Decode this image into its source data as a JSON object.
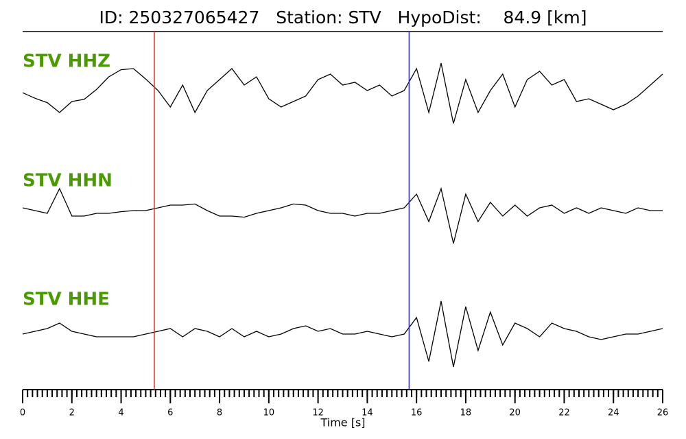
{
  "chart_data": {
    "type": "line",
    "title": "ID: 250327065427   Station: STV   HypoDist:    84.9 [km]",
    "xlabel": "Time [s]",
    "xlim": [
      0,
      26
    ],
    "xticks": [
      0,
      2,
      4,
      6,
      8,
      10,
      12,
      14,
      16,
      18,
      20,
      22,
      24,
      26
    ],
    "minor_tick_interval": 0.2,
    "ylim": [
      -1,
      1
    ],
    "label_color": "#4a9a00",
    "markers": [
      {
        "x": 5.35,
        "color": "#e8302a"
      },
      {
        "x": 15.7,
        "color": "#2a2ae0"
      }
    ],
    "x": [
      0,
      0.5,
      1,
      1.5,
      2,
      2.5,
      3,
      3.5,
      4,
      4.5,
      5,
      5.5,
      6,
      6.5,
      7,
      7.5,
      8,
      8.5,
      9,
      9.5,
      10,
      10.5,
      11,
      11.5,
      12,
      12.5,
      13,
      13.5,
      14,
      14.5,
      15,
      15.5,
      16,
      16.5,
      17,
      17.5,
      18,
      18.5,
      19,
      19.5,
      20,
      20.5,
      21,
      21.5,
      22,
      22.5,
      23,
      23.5,
      24,
      24.5,
      25,
      25.5,
      26
    ],
    "series": [
      {
        "name": "STV HHZ",
        "color": "#000000",
        "values": [
          0.06,
          -0.04,
          -0.12,
          -0.3,
          -0.1,
          -0.06,
          0.12,
          0.35,
          0.48,
          0.5,
          0.31,
          0.1,
          -0.2,
          0.2,
          -0.3,
          0.1,
          0.3,
          0.5,
          0.2,
          0.35,
          -0.05,
          -0.2,
          -0.1,
          0,
          0.3,
          0.4,
          0.2,
          0.25,
          0.1,
          0.2,
          0,
          0.1,
          0.5,
          -0.3,
          0.6,
          -0.5,
          0.3,
          -0.3,
          0.1,
          0.4,
          -0.2,
          0.3,
          0.45,
          0.2,
          0.3,
          -0.1,
          -0.05,
          -0.15,
          -0.25,
          -0.15,
          0,
          0.2,
          0.4
        ]
      },
      {
        "name": "STV HHN",
        "color": "#000000",
        "values": [
          0.05,
          0,
          -0.05,
          0.4,
          -0.1,
          -0.1,
          -0.05,
          -0.05,
          -0.02,
          0,
          0,
          0.05,
          0.1,
          0.1,
          0.12,
          0,
          -0.1,
          -0.1,
          -0.12,
          -0.05,
          0,
          0.05,
          0.12,
          0.1,
          0,
          -0.05,
          -0.05,
          -0.1,
          -0.05,
          -0.05,
          0,
          0.05,
          0.3,
          -0.2,
          0.4,
          -0.6,
          0.3,
          -0.2,
          0.15,
          -0.1,
          0.1,
          -0.1,
          0.05,
          0.1,
          -0.05,
          0.05,
          -0.05,
          0.05,
          0,
          -0.05,
          0.05,
          0,
          0
        ]
      },
      {
        "name": "STV HHE",
        "color": "#000000",
        "values": [
          0,
          0.05,
          0.1,
          0.2,
          0.05,
          0,
          -0.05,
          -0.05,
          -0.05,
          -0.05,
          0,
          0.05,
          0.1,
          -0.05,
          0.1,
          0.05,
          -0.05,
          0.1,
          -0.05,
          0.05,
          -0.05,
          0,
          0.1,
          0.15,
          0.05,
          0.1,
          0,
          0,
          0.05,
          0,
          -0.05,
          0,
          0.3,
          -0.5,
          0.6,
          -0.6,
          0.5,
          -0.3,
          0.4,
          -0.2,
          0.2,
          0.1,
          -0.05,
          0.2,
          0.1,
          0.05,
          -0.05,
          -0.1,
          -0.05,
          0,
          0,
          0.05,
          0.1
        ]
      }
    ]
  }
}
